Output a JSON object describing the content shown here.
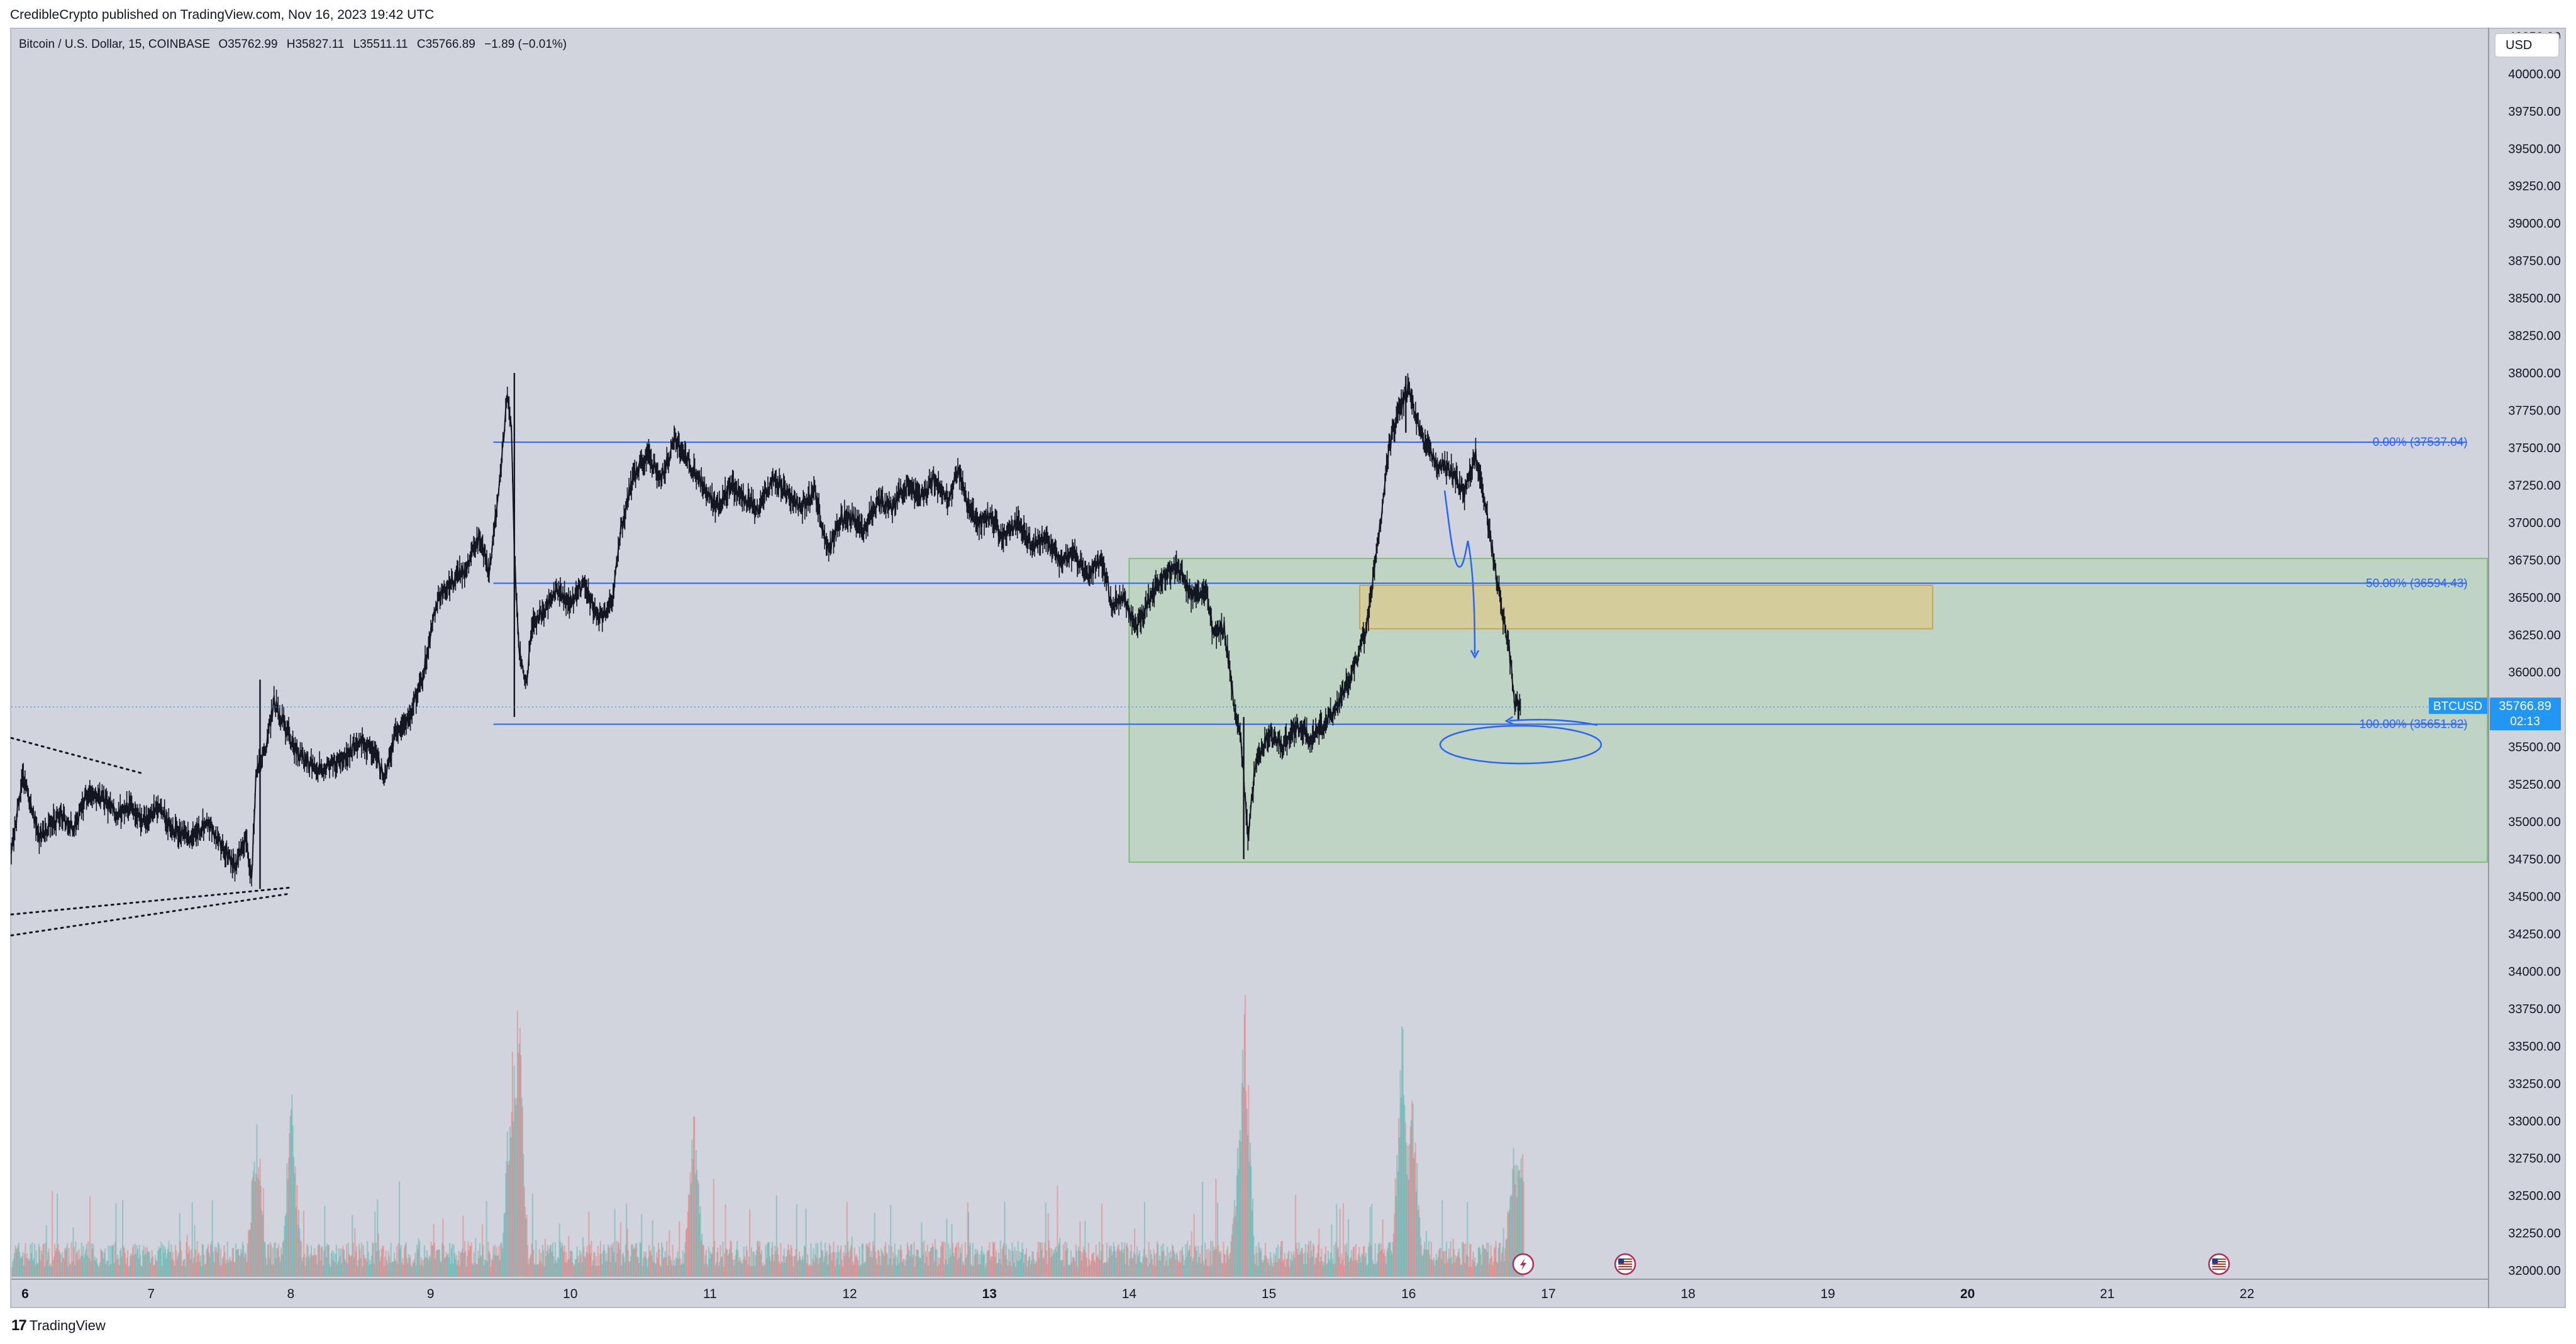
{
  "publisher_line": "CredibleCrypto published on TradingView.com, Nov 16, 2023 19:42 UTC",
  "legend": {
    "symbol": "Bitcoin / U.S. Dollar, 15, COINBASE",
    "open_label": "O",
    "open": "35762.99",
    "high_label": "H",
    "high": "35827.11",
    "low_label": "L",
    "low": "35511.11",
    "close_label": "C",
    "close": "35766.89",
    "change": "−1.89 (−0.01%)"
  },
  "currency_button": "USD",
  "footer": {
    "logo_mark": "17",
    "logo_text": "TradingView"
  },
  "colors": {
    "background": "#d1d4dc",
    "candle": "#131722",
    "fib_line": "#2962ff",
    "zone_green": "#a9d5a1",
    "zone_orange": "#e6c47a",
    "price_tag": "#2196f3",
    "volume_up": "#26a69a",
    "volume_down": "#ef5350"
  },
  "chart_data": {
    "type": "candlestick",
    "title": "",
    "xlabel": "",
    "ylabel": "",
    "timeframe": "15",
    "exchange": "COINBASE",
    "pair": "Bitcoin / U.S. Dollar",
    "ylim": [
      31950,
      40300
    ],
    "xlim": [
      6.0,
      23.72
    ],
    "price_ticks": [
      "32000.00",
      "32250.00",
      "32500.00",
      "32750.00",
      "33000.00",
      "33250.00",
      "33500.00",
      "33750.00",
      "34000.00",
      "34250.00",
      "34500.00",
      "34750.00",
      "35000.00",
      "35250.00",
      "35500.00",
      "36000.00",
      "36250.00",
      "36500.00",
      "36750.00",
      "37000.00",
      "37250.00",
      "37500.00",
      "37750.00",
      "38000.00",
      "38250.00",
      "38500.00",
      "38750.00",
      "39000.00",
      "39250.00",
      "39500.00",
      "39750.00",
      "40000.00",
      "40250.00"
    ],
    "date_ticks": [
      {
        "label": "6",
        "day": 6,
        "bold": true
      },
      {
        "label": "7",
        "day": 7,
        "bold": false
      },
      {
        "label": "8",
        "day": 8,
        "bold": false
      },
      {
        "label": "9",
        "day": 9,
        "bold": false
      },
      {
        "label": "10",
        "day": 10,
        "bold": false
      },
      {
        "label": "11",
        "day": 11,
        "bold": false
      },
      {
        "label": "12",
        "day": 12,
        "bold": false
      },
      {
        "label": "13",
        "day": 13,
        "bold": true
      },
      {
        "label": "14",
        "day": 14,
        "bold": false
      },
      {
        "label": "15",
        "day": 15,
        "bold": false
      },
      {
        "label": "16",
        "day": 16,
        "bold": false
      },
      {
        "label": "17",
        "day": 17,
        "bold": false
      },
      {
        "label": "18",
        "day": 18,
        "bold": false
      },
      {
        "label": "19",
        "day": 19,
        "bold": false
      },
      {
        "label": "20",
        "day": 20,
        "bold": true
      },
      {
        "label": "21",
        "day": 21,
        "bold": false
      },
      {
        "label": "22",
        "day": 22,
        "bold": false
      }
    ],
    "price_path": [
      [
        6.0,
        34800
      ],
      [
        6.08,
        35300
      ],
      [
        6.2,
        34900
      ],
      [
        6.35,
        35050
      ],
      [
        6.45,
        34950
      ],
      [
        6.55,
        35200
      ],
      [
        6.65,
        35150
      ],
      [
        6.75,
        35050
      ],
      [
        6.85,
        35100
      ],
      [
        6.95,
        35000
      ],
      [
        7.05,
        35100
      ],
      [
        7.15,
        34950
      ],
      [
        7.3,
        34900
      ],
      [
        7.4,
        35000
      ],
      [
        7.5,
        34850
      ],
      [
        7.6,
        34700
      ],
      [
        7.68,
        34900
      ],
      [
        7.72,
        34600
      ],
      [
        7.75,
        35300
      ],
      [
        7.82,
        35500
      ],
      [
        7.88,
        35800
      ],
      [
        7.95,
        35650
      ],
      [
        8.05,
        35450
      ],
      [
        8.2,
        35350
      ],
      [
        8.35,
        35400
      ],
      [
        8.5,
        35550
      ],
      [
        8.6,
        35450
      ],
      [
        8.68,
        35300
      ],
      [
        8.75,
        35600
      ],
      [
        8.85,
        35700
      ],
      [
        8.95,
        36000
      ],
      [
        9.05,
        36500
      ],
      [
        9.15,
        36600
      ],
      [
        9.25,
        36700
      ],
      [
        9.35,
        36900
      ],
      [
        9.42,
        36650
      ],
      [
        9.5,
        37300
      ],
      [
        9.55,
        37900
      ],
      [
        9.58,
        37600
      ],
      [
        9.6,
        36800
      ],
      [
        9.63,
        36200
      ],
      [
        9.68,
        35900
      ],
      [
        9.73,
        36300
      ],
      [
        9.8,
        36400
      ],
      [
        9.9,
        36550
      ],
      [
        10.0,
        36450
      ],
      [
        10.1,
        36600
      ],
      [
        10.2,
        36350
      ],
      [
        10.3,
        36450
      ],
      [
        10.35,
        36900
      ],
      [
        10.45,
        37300
      ],
      [
        10.55,
        37450
      ],
      [
        10.65,
        37300
      ],
      [
        10.75,
        37550
      ],
      [
        10.85,
        37400
      ],
      [
        10.95,
        37250
      ],
      [
        11.05,
        37100
      ],
      [
        11.15,
        37250
      ],
      [
        11.25,
        37150
      ],
      [
        11.35,
        37100
      ],
      [
        11.45,
        37300
      ],
      [
        11.55,
        37200
      ],
      [
        11.65,
        37100
      ],
      [
        11.75,
        37200
      ],
      [
        11.85,
        36800
      ],
      [
        11.92,
        37000
      ],
      [
        12.0,
        37050
      ],
      [
        12.1,
        36950
      ],
      [
        12.2,
        37150
      ],
      [
        12.3,
        37100
      ],
      [
        12.4,
        37250
      ],
      [
        12.5,
        37150
      ],
      [
        12.6,
        37300
      ],
      [
        12.7,
        37150
      ],
      [
        12.78,
        37350
      ],
      [
        12.85,
        37100
      ],
      [
        12.92,
        37000
      ],
      [
        13.0,
        37050
      ],
      [
        13.1,
        36900
      ],
      [
        13.2,
        37000
      ],
      [
        13.3,
        36850
      ],
      [
        13.4,
        36900
      ],
      [
        13.5,
        36750
      ],
      [
        13.6,
        36800
      ],
      [
        13.7,
        36650
      ],
      [
        13.8,
        36750
      ],
      [
        13.88,
        36450
      ],
      [
        13.95,
        36500
      ],
      [
        14.05,
        36300
      ],
      [
        14.15,
        36500
      ],
      [
        14.25,
        36650
      ],
      [
        14.35,
        36700
      ],
      [
        14.45,
        36500
      ],
      [
        14.55,
        36550
      ],
      [
        14.6,
        36250
      ],
      [
        14.68,
        36300
      ],
      [
        14.75,
        35800
      ],
      [
        14.8,
        35550
      ],
      [
        14.85,
        34900
      ],
      [
        14.9,
        35350
      ],
      [
        15.0,
        35600
      ],
      [
        15.1,
        35500
      ],
      [
        15.2,
        35650
      ],
      [
        15.3,
        35550
      ],
      [
        15.4,
        35650
      ],
      [
        15.5,
        35800
      ],
      [
        15.6,
        36000
      ],
      [
        15.7,
        36300
      ],
      [
        15.75,
        36650
      ],
      [
        15.8,
        37000
      ],
      [
        15.86,
        37500
      ],
      [
        15.93,
        37750
      ],
      [
        16.0,
        37900
      ],
      [
        16.05,
        37700
      ],
      [
        16.1,
        37550
      ],
      [
        16.2,
        37400
      ],
      [
        16.3,
        37350
      ],
      [
        16.4,
        37200
      ],
      [
        16.48,
        37450
      ],
      [
        16.55,
        37100
      ],
      [
        16.6,
        36800
      ],
      [
        16.67,
        36400
      ],
      [
        16.72,
        36150
      ],
      [
        16.76,
        35800
      ],
      [
        16.8,
        35766.89
      ]
    ],
    "wicks": [
      {
        "x": 9.6,
        "high": 38000,
        "low": 35700
      },
      {
        "x": 14.82,
        "high": 35700,
        "low": 34750
      },
      {
        "x": 15.98,
        "high": 37980,
        "low": 37600
      },
      {
        "x": 7.78,
        "high": 35950,
        "low": 34550
      }
    ],
    "fib_levels": [
      {
        "label": "0.00% (37537.04)",
        "price": 37537.04,
        "x_start": 9.45,
        "x_end": 23.57
      },
      {
        "label": "50.00% (36594.43)",
        "price": 36594.43,
        "x_start": 9.45,
        "x_end": 23.57
      },
      {
        "label": "100.00% (35651.82)",
        "price": 35651.82,
        "x_start": 9.45,
        "x_end": 23.57
      }
    ],
    "zones": [
      {
        "name": "",
        "color": "green",
        "x_start": 14.0,
        "x_end": 23.72,
        "price_top": 36760,
        "price_bottom": 34730
      },
      {
        "name": "",
        "color": "orange",
        "x_start": 15.65,
        "x_end": 19.75,
        "price_top": 36580,
        "price_bottom": 36290
      }
    ],
    "dotted_trendlines": [
      {
        "from": [
          6.0,
          35560
        ],
        "to": [
          6.95,
          35320
        ]
      },
      {
        "from": [
          6.0,
          34380
        ],
        "to": [
          8.0,
          34560
        ]
      },
      {
        "from": [
          6.0,
          34240
        ],
        "to": [
          8.0,
          34520
        ]
      }
    ],
    "current_price": {
      "symbol": "BTCUSD",
      "price": "35766.89",
      "countdown": "02:13"
    },
    "volume_spikes": [
      {
        "x": 7.75,
        "h": 0.55,
        "up": true
      },
      {
        "x": 9.62,
        "h": 0.98,
        "up": false
      },
      {
        "x": 9.58,
        "h": 0.8,
        "up": true
      },
      {
        "x": 14.82,
        "h": 0.97,
        "up": false
      },
      {
        "x": 14.78,
        "h": 0.45,
        "up": true
      },
      {
        "x": 15.95,
        "h": 0.82,
        "up": true
      },
      {
        "x": 16.02,
        "h": 0.65,
        "up": false
      },
      {
        "x": 16.75,
        "h": 0.45,
        "up": false
      },
      {
        "x": 16.8,
        "h": 0.5,
        "up": false
      },
      {
        "x": 10.88,
        "h": 0.52,
        "up": true
      },
      {
        "x": 8.0,
        "h": 0.6,
        "up": true
      }
    ],
    "event_icons": [
      {
        "x": 16.82,
        "kind": "lightning"
      },
      {
        "x": 17.55,
        "kind": "us-flag"
      },
      {
        "x": 21.8,
        "kind": "us-flag"
      }
    ]
  }
}
